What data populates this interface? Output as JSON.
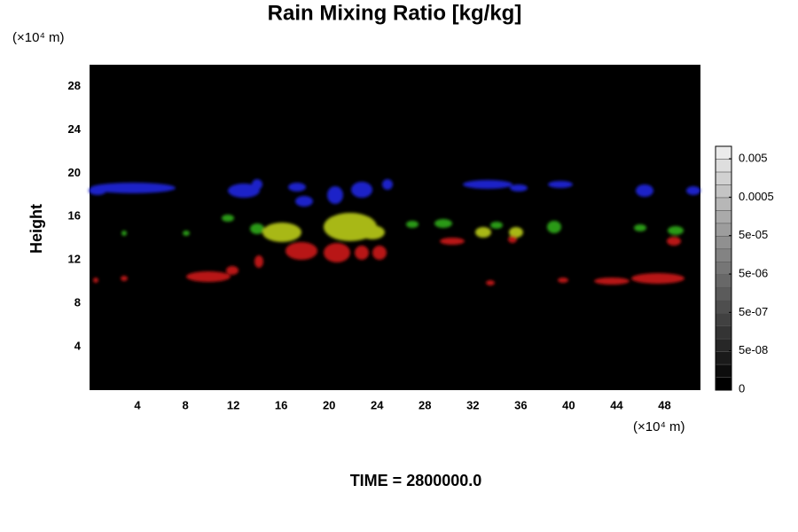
{
  "chart_data": {
    "type": "contour",
    "title": "Rain Mixing Ratio [kg/kg]",
    "y_label": "Height",
    "y_unit": "(×10⁴ m)",
    "x_unit": "(×10⁴ m)",
    "xlim": [
      0,
      51
    ],
    "xticks": [
      4,
      8,
      12,
      16,
      20,
      24,
      28,
      32,
      36,
      40,
      44,
      48
    ],
    "ylim": [
      0,
      30
    ],
    "yticks": [
      4,
      8,
      12,
      16,
      20,
      24,
      28
    ],
    "background": "#000000",
    "colorbar_ticks": [
      {
        "value": 0,
        "label": "0"
      },
      {
        "value": 5e-08,
        "label": "5e-08"
      },
      {
        "value": 5e-07,
        "label": "5e-07"
      },
      {
        "value": 5e-06,
        "label": "5e-06"
      },
      {
        "value": 5e-05,
        "label": "5e-05"
      },
      {
        "value": 0.0005,
        "label": "0.0005"
      },
      {
        "value": 0.005,
        "label": "0.005"
      }
    ],
    "annotation": "TIME = 2800000.0"
  }
}
